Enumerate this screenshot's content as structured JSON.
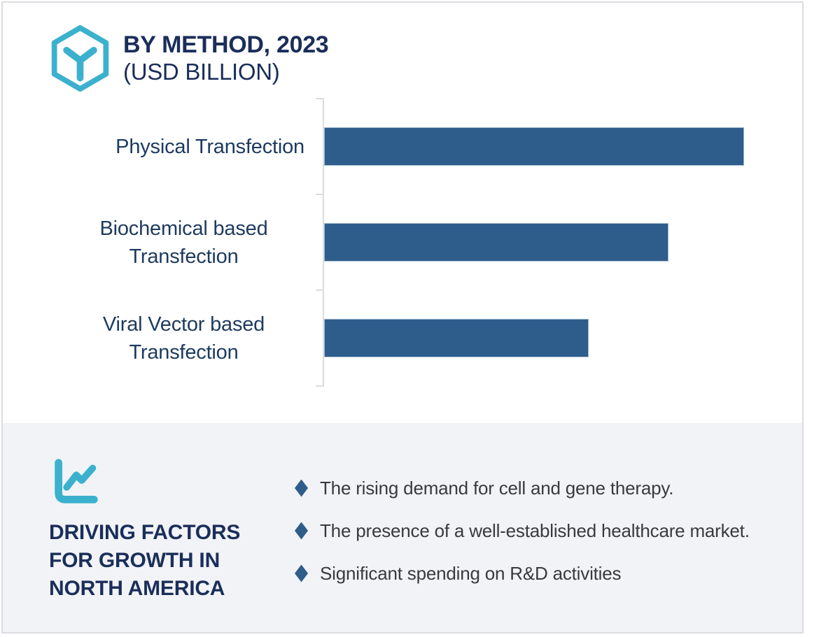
{
  "header": {
    "title": "BY METHOD, 2023",
    "subtitle": "(USD BILLION)",
    "icon": "hexagon-cube-icon"
  },
  "chart_data": {
    "type": "bar",
    "orientation": "horizontal",
    "title": "BY METHOD, 2023 (USD BILLION)",
    "categories": [
      "Physical Transfection",
      "Biochemical based Transfection",
      "Viral Vector based Transfection"
    ],
    "values": [
      100,
      82,
      63
    ],
    "value_unit": "relative-length-percent (no numeric axis labels shown)",
    "xlabel": "",
    "ylabel": "",
    "xlim": [
      0,
      100
    ],
    "grid": false,
    "legend": false,
    "bar_color": "#2e5d8b"
  },
  "driving": {
    "icon": "line-chart-icon",
    "lines": [
      "DRIVING FACTORS",
      "FOR GROWTH IN",
      "NORTH AMERICA"
    ],
    "bullets": [
      "The rising demand for cell and gene therapy.",
      "The presence of a well-established healthcare market.",
      "Significant spending on R&D activities"
    ]
  },
  "colors": {
    "accent_cyan": "#3bb1ce",
    "title_navy": "#1b2e5a",
    "label_navy": "#1d3a5f",
    "bar_blue": "#2e5d8b",
    "body_text": "#3a3a3c",
    "section_bg": "#f1f3f7",
    "axis_gray": "#dcdcdc",
    "card_border": "#dcdce2"
  }
}
